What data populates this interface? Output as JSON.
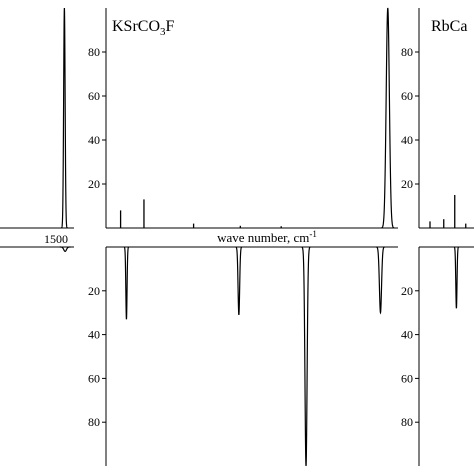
{
  "chart_data": {
    "type": "line",
    "xlabel": "wave number, cm",
    "xlabel_superscript": "-1",
    "x_tick_labels": [
      "1500"
    ],
    "top_panel": {
      "compound": "KSrCO",
      "compound_subscript": "3",
      "compound_suffix": "F",
      "y_ticks": [
        20,
        40,
        60,
        80
      ],
      "ylim": [
        0,
        100
      ]
    },
    "right_panel_label": "RbCa",
    "bottom_panel": {
      "y_ticks": [
        20,
        40,
        60,
        80
      ],
      "ylim": [
        0,
        100
      ],
      "inverted": true
    },
    "top_sticks": [
      {
        "segment": "center",
        "pos": 0.05,
        "value": 8
      },
      {
        "segment": "center",
        "pos": 0.13,
        "value": 13
      },
      {
        "segment": "center",
        "pos": 0.3,
        "value": 2
      },
      {
        "segment": "center",
        "pos": 0.46,
        "value": 1
      },
      {
        "segment": "center",
        "pos": 0.6,
        "value": 0.8
      },
      {
        "segment": "right",
        "pos": 0.2,
        "value": 3
      },
      {
        "segment": "right",
        "pos": 0.45,
        "value": 4
      },
      {
        "segment": "right",
        "pos": 0.65,
        "value": 15
      },
      {
        "segment": "right",
        "pos": 0.85,
        "value": 2
      }
    ],
    "top_peaks": [
      {
        "segment": "left",
        "pos": 0.87,
        "value": 100,
        "width": 0.022
      },
      {
        "segment": "center",
        "pos": 0.965,
        "value": 100,
        "width": 0.012
      }
    ],
    "bottom_peaks": [
      {
        "segment": "left",
        "pos": 0.88,
        "value": 2,
        "width": 0.04
      },
      {
        "segment": "center",
        "pos": 0.07,
        "value": 33,
        "width": 0.004
      },
      {
        "segment": "center",
        "pos": 0.455,
        "value": 31,
        "width": 0.006
      },
      {
        "segment": "center",
        "pos": 0.685,
        "value": 100,
        "width": 0.008
      },
      {
        "segment": "center",
        "pos": 0.94,
        "value": 30,
        "width": 0.008
      },
      {
        "segment": "right",
        "pos": 0.68,
        "value": 28,
        "width": 0.005
      }
    ]
  }
}
